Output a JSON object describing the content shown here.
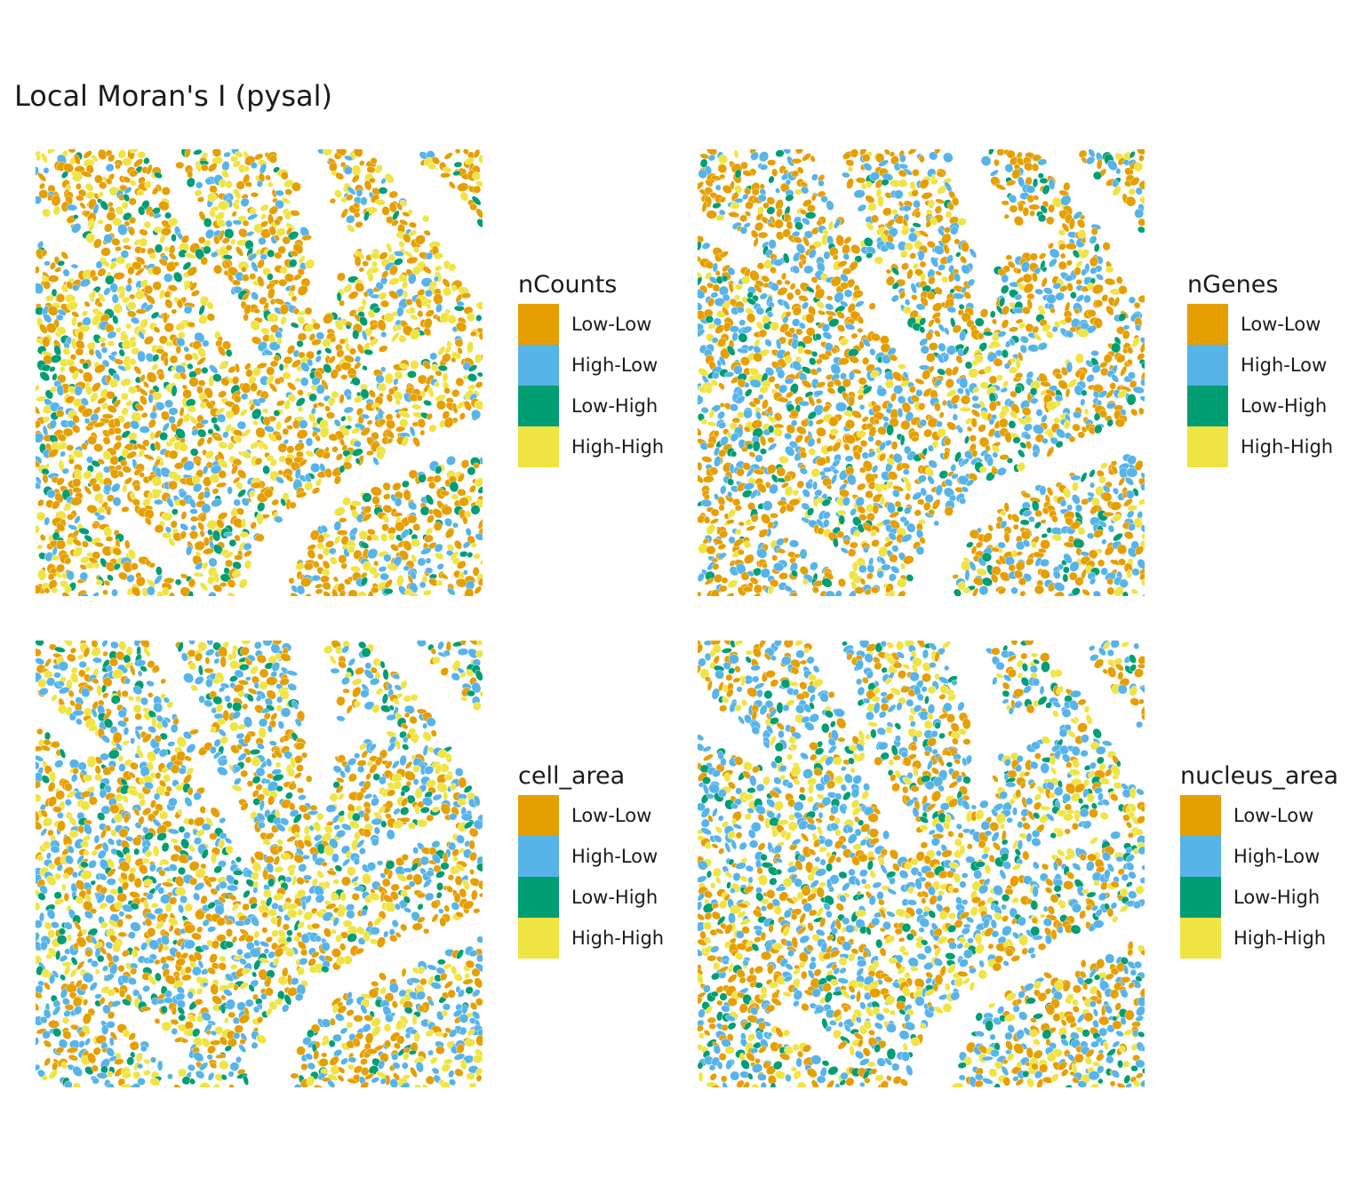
{
  "title": "Local Moran's I (pysal)",
  "categories": [
    "Low-Low",
    "High-Low",
    "Low-High",
    "High-High"
  ],
  "colors": {
    "Low-Low": "#E69F00",
    "High-Low": "#56B4E9",
    "Low-High": "#009E73",
    "High-High": "#F0E442"
  },
  "chart_data": [
    {
      "type": "heatmap",
      "legend_title": "nCounts",
      "categories": [
        "Low-Low",
        "High-Low",
        "Low-High",
        "High-High"
      ],
      "legend_placement": "right",
      "grid": false,
      "axes": false
    },
    {
      "type": "heatmap",
      "legend_title": "nGenes",
      "categories": [
        "Low-Low",
        "High-Low",
        "Low-High",
        "High-High"
      ],
      "legend_placement": "right",
      "grid": false,
      "axes": false
    },
    {
      "type": "heatmap",
      "legend_title": "cell_area",
      "categories": [
        "Low-Low",
        "High-Low",
        "Low-High",
        "High-High"
      ],
      "legend_placement": "right",
      "grid": false,
      "axes": false
    },
    {
      "type": "heatmap",
      "legend_title": "nucleus_area",
      "categories": [
        "Low-Low",
        "High-Low",
        "Low-High",
        "High-High"
      ],
      "legend_placement": "right",
      "grid": false,
      "axes": false
    }
  ]
}
